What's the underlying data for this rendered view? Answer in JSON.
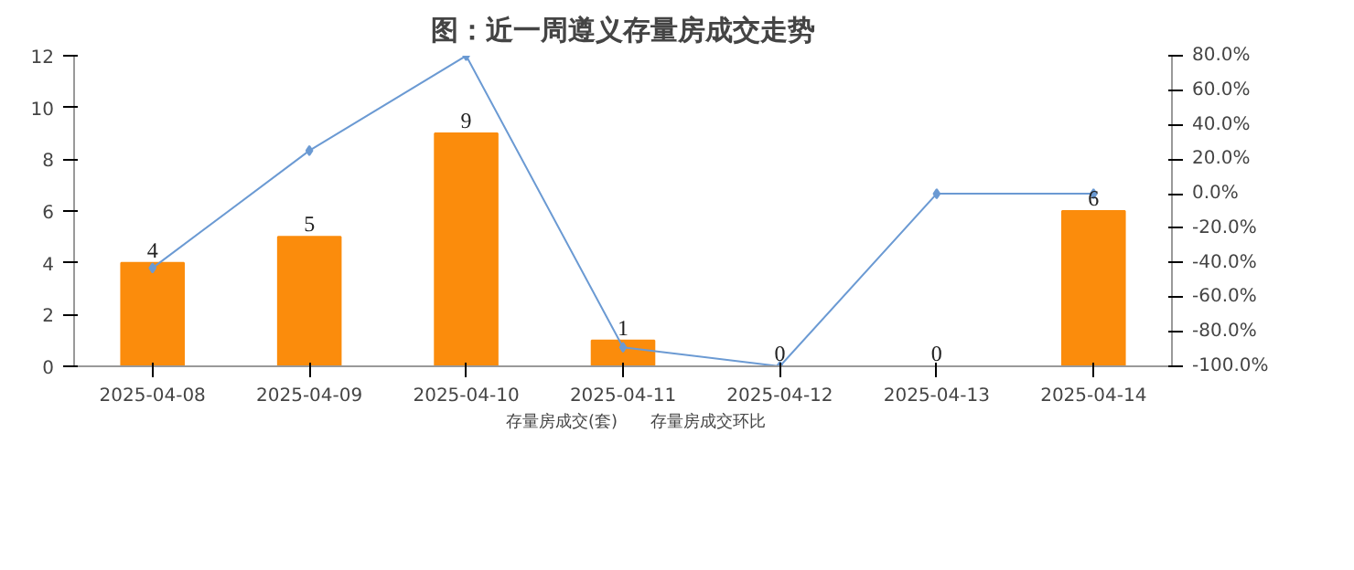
{
  "chart_data": {
    "type": "bar",
    "title": "图：近一周遵义存量房成交走势",
    "categories": [
      "2025-04-08",
      "2025-04-09",
      "2025-04-10",
      "2025-04-11",
      "2025-04-12",
      "2025-04-13",
      "2025-04-14"
    ],
    "series": [
      {
        "name": "存量房成交(套)",
        "color": "#fb8c0c",
        "values": [
          4,
          5,
          9,
          1,
          0,
          0,
          6
        ],
        "value_labels": [
          "4",
          "5",
          "9",
          "1",
          "0",
          "0",
          "6"
        ]
      },
      {
        "name": "存量房成交环比",
        "type": "line",
        "axis": "y2",
        "color": "#6b9ad3",
        "marker": "diamond",
        "values": [
          -43,
          25,
          80,
          -89,
          -100,
          0,
          0
        ]
      }
    ],
    "ylim": [
      0,
      12
    ],
    "yticks": [
      0,
      2,
      4,
      6,
      8,
      10,
      12
    ],
    "y2lim": [
      -100,
      80
    ],
    "y2ticks": [
      {
        "value": 80,
        "label": "80.0%"
      },
      {
        "value": 60,
        "label": "60.0%"
      },
      {
        "value": 40,
        "label": "40.0%"
      },
      {
        "value": 20,
        "label": "20.0%"
      },
      {
        "value": 0,
        "label": "0.0%"
      },
      {
        "value": -20,
        "label": "-20.0%"
      },
      {
        "value": -40,
        "label": "-40.0%"
      },
      {
        "value": -60,
        "label": "-60.0%"
      },
      {
        "value": -80,
        "label": "-80.0%"
      },
      {
        "value": -100,
        "label": "-100.0%"
      }
    ],
    "grid": false,
    "legend": "bottom"
  }
}
